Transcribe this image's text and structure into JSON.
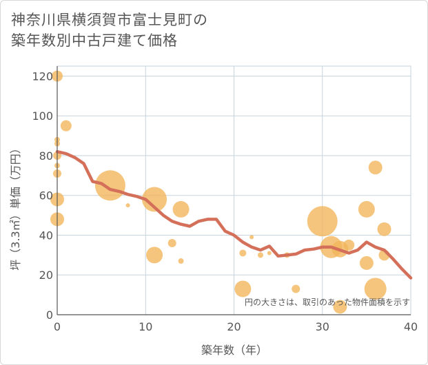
{
  "title_line1": "神奈川県横須賀市富士見町の",
  "title_line2": "築年数別中古戸建て価格",
  "chart_data": {
    "type": "scatter",
    "xlabel": "築年数（年）",
    "ylabel": "坪（3.3㎡）単価（万円）",
    "xlim": [
      0,
      40
    ],
    "ylim": [
      0,
      125
    ],
    "xticks": [
      0,
      10,
      20,
      30,
      40
    ],
    "yticks": [
      0,
      20,
      40,
      60,
      80,
      100,
      120
    ],
    "grid": true,
    "annotation": "円の大きさは、取引のあった物件面積を示す",
    "colors": {
      "bubble": "#f2b55a",
      "line": "#d4705a",
      "grid": "#c5d3dc",
      "axis": "#555555"
    },
    "bubbles": [
      {
        "x": 0,
        "y": 120,
        "size": 3
      },
      {
        "x": 0,
        "y": 88,
        "size": 1
      },
      {
        "x": 0,
        "y": 86,
        "size": 1
      },
      {
        "x": 0,
        "y": 80,
        "size": 2
      },
      {
        "x": 0,
        "y": 75,
        "size": 1
      },
      {
        "x": 0,
        "y": 71,
        "size": 2
      },
      {
        "x": 0,
        "y": 58,
        "size": 4
      },
      {
        "x": 0,
        "y": 48,
        "size": 4
      },
      {
        "x": 1,
        "y": 95,
        "size": 3
      },
      {
        "x": 6,
        "y": 65,
        "size": 10
      },
      {
        "x": 8,
        "y": 55,
        "size": 0.5
      },
      {
        "x": 11,
        "y": 58,
        "size": 8
      },
      {
        "x": 11,
        "y": 30,
        "size": 5
      },
      {
        "x": 13,
        "y": 36,
        "size": 2
      },
      {
        "x": 14,
        "y": 53,
        "size": 5
      },
      {
        "x": 14,
        "y": 27,
        "size": 1
      },
      {
        "x": 21,
        "y": 31,
        "size": 1.5
      },
      {
        "x": 21,
        "y": 13,
        "size": 5
      },
      {
        "x": 22,
        "y": 39,
        "size": 0.5
      },
      {
        "x": 23,
        "y": 30,
        "size": 1
      },
      {
        "x": 24,
        "y": 31,
        "size": 0.5
      },
      {
        "x": 26,
        "y": 30,
        "size": 1
      },
      {
        "x": 27,
        "y": 13,
        "size": 2
      },
      {
        "x": 30,
        "y": 47,
        "size": 10
      },
      {
        "x": 31,
        "y": 34,
        "size": 7
      },
      {
        "x": 32,
        "y": 33,
        "size": 5
      },
      {
        "x": 32,
        "y": 4,
        "size": 4
      },
      {
        "x": 33,
        "y": 35,
        "size": 3
      },
      {
        "x": 35,
        "y": 53,
        "size": 5
      },
      {
        "x": 35,
        "y": 26,
        "size": 4
      },
      {
        "x": 36,
        "y": 74,
        "size": 4
      },
      {
        "x": 36,
        "y": 13,
        "size": 7
      },
      {
        "x": 37,
        "y": 43,
        "size": 4
      },
      {
        "x": 37,
        "y": 30,
        "size": 3
      }
    ],
    "trend_line": {
      "x": [
        0,
        1,
        2,
        3,
        4,
        5,
        6,
        7,
        8,
        9,
        10,
        11,
        12,
        13,
        14,
        15,
        16,
        17,
        18,
        19,
        20,
        21,
        22,
        23,
        24,
        25,
        26,
        27,
        28,
        29,
        30,
        31,
        32,
        33,
        34,
        35,
        36,
        37,
        38,
        39,
        40
      ],
      "y": [
        82,
        81,
        79,
        76,
        67,
        66,
        63,
        62,
        60.5,
        59.5,
        58,
        54,
        50,
        47,
        45.5,
        44.5,
        47,
        48,
        48,
        42,
        40,
        36.5,
        34,
        32.5,
        34.5,
        29.5,
        30,
        30.5,
        32.5,
        33,
        34,
        34,
        32.5,
        31,
        32.5,
        36.5,
        34,
        32.5,
        28,
        23,
        18.5
      ]
    }
  }
}
